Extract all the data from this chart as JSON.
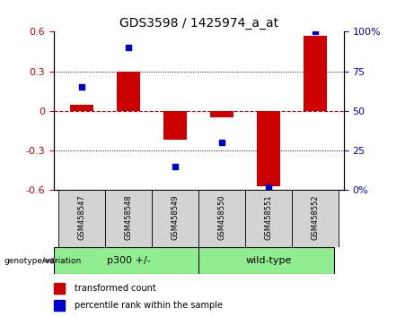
{
  "title": "GDS3598 / 1425974_a_at",
  "samples": [
    "GSM458547",
    "GSM458548",
    "GSM458549",
    "GSM458550",
    "GSM458551",
    "GSM458552"
  ],
  "bar_values": [
    0.05,
    0.3,
    -0.22,
    -0.05,
    -0.57,
    0.57
  ],
  "percentile_values": [
    65,
    90,
    15,
    30,
    2,
    100
  ],
  "bar_color": "#cc0000",
  "dot_color": "#0000cc",
  "ylim_left": [
    -0.6,
    0.6
  ],
  "ylim_right": [
    0,
    100
  ],
  "yticks_left": [
    -0.6,
    -0.3,
    0.0,
    0.3,
    0.6
  ],
  "yticks_right": [
    0,
    25,
    50,
    75,
    100
  ],
  "ytick_labels_left": [
    "-0.6",
    "-0.3",
    "0",
    "0.3",
    "0.6"
  ],
  "ytick_labels_right": [
    "0%",
    "25",
    "50",
    "75",
    "100%"
  ],
  "genotype_label": "genotype/variation",
  "legend_bar_label": "transformed count",
  "legend_dot_label": "percentile rank within the sample",
  "bar_width": 0.5,
  "zero_line_color": "#cc0000",
  "grid_color": "#000000",
  "tick_label_fontsize": 8,
  "title_fontsize": 10,
  "plot_bg_color": "#ffffff",
  "sample_box_color": "#d3d3d3",
  "geno_box_color": "#90ee90",
  "p300_label": "p300 +/-",
  "wt_label": "wild-type"
}
